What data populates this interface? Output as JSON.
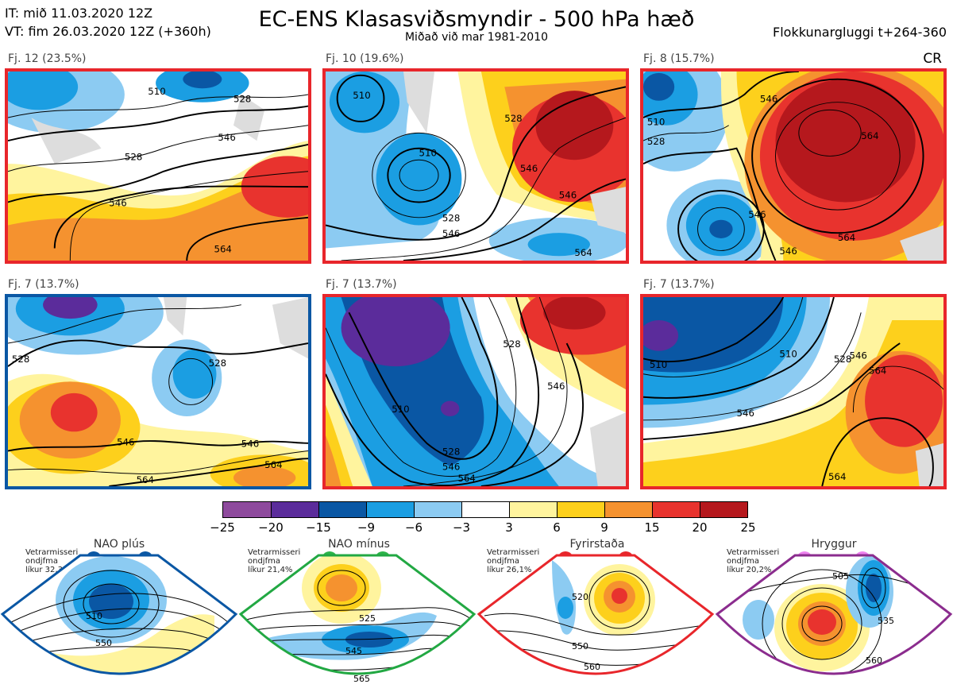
{
  "header": {
    "it_line": "IT: mið 11.03.2020 12Z",
    "vt_line": "VT: fim 26.03.2020 12Z  (+360h)",
    "title": "EC-ENS Klasasviðsmyndir - 500 hPa hæð",
    "subtitle": "Miðað við mar 1981-2010",
    "window": "Flokkunargluggi t+264-360",
    "cr": "CR"
  },
  "colors": {
    "nao_plus": "#0a57a4",
    "nao_minus": "#22a843",
    "blocking": "#e8262b",
    "ridge": "#8b2c8e",
    "dot_nao_plus": "#0a57a4",
    "dot_nao_minus": "#2db34a",
    "dot_blocking": "#e8262b",
    "dot_ridge": "#ee82ee"
  },
  "panels": [
    {
      "label": "Fj. 12 (23.5%)",
      "regime": "blocking",
      "contours": [
        "510",
        "528",
        "546",
        "528",
        "546",
        "564"
      ]
    },
    {
      "label": "Fj. 10 (19.6%)",
      "regime": "blocking",
      "contours": [
        "510",
        "510",
        "528",
        "546",
        "546",
        "564",
        "546",
        "528"
      ]
    },
    {
      "label": "Fj. 8 (15.7%)",
      "regime": "blocking",
      "contours": [
        "546",
        "510",
        "528",
        "564",
        "546",
        "564",
        "546"
      ]
    },
    {
      "label": "Fj. 7 (13.7%)",
      "regime": "nao_plus",
      "contours": [
        "528",
        "528",
        "546",
        "546",
        "564",
        "564"
      ]
    },
    {
      "label": "Fj. 7 (13.7%)",
      "regime": "blocking",
      "contours": [
        "528",
        "546",
        "510",
        "528",
        "546",
        "564"
      ]
    },
    {
      "label": "Fj. 7 (13.7%)",
      "regime": "blocking",
      "contours": [
        "510",
        "510",
        "528",
        "546",
        "546",
        "564",
        "564"
      ]
    }
  ],
  "colorbar": {
    "colors": [
      "#8e4a9d",
      "#5b2c9b",
      "#0a57a4",
      "#1b9ee2",
      "#8ccbf2",
      "#ffffff",
      "#fff49e",
      "#fdd01c",
      "#f5922f",
      "#e8332e",
      "#b5181d"
    ],
    "ticks": [
      "−25",
      "−20",
      "−15",
      "−9",
      "−6",
      "−3",
      "3",
      "6",
      "9",
      "15",
      "20",
      "25"
    ]
  },
  "regimes": [
    {
      "name": "NAO plús",
      "info": [
        "Vetrarmisseri",
        "ondjfma",
        "líkur 32,3%"
      ],
      "contours": [
        "510",
        "550"
      ]
    },
    {
      "name": "NAO mínus",
      "info": [
        "Vetrarmisseri",
        "ondjfma",
        "líkur 21,4%"
      ],
      "contours": [
        "525",
        "545",
        "565"
      ]
    },
    {
      "name": "Fyrirstaða",
      "info": [
        "Vetrarmisseri",
        "ondjfma",
        "líkur 26,1%"
      ],
      "contours": [
        "520",
        "550",
        "560"
      ]
    },
    {
      "name": "Hryggur",
      "info": [
        "Vetrarmisseri",
        "ondjfma",
        "líkur 20,2%"
      ],
      "contours": [
        "505",
        "535",
        "560"
      ]
    }
  ]
}
